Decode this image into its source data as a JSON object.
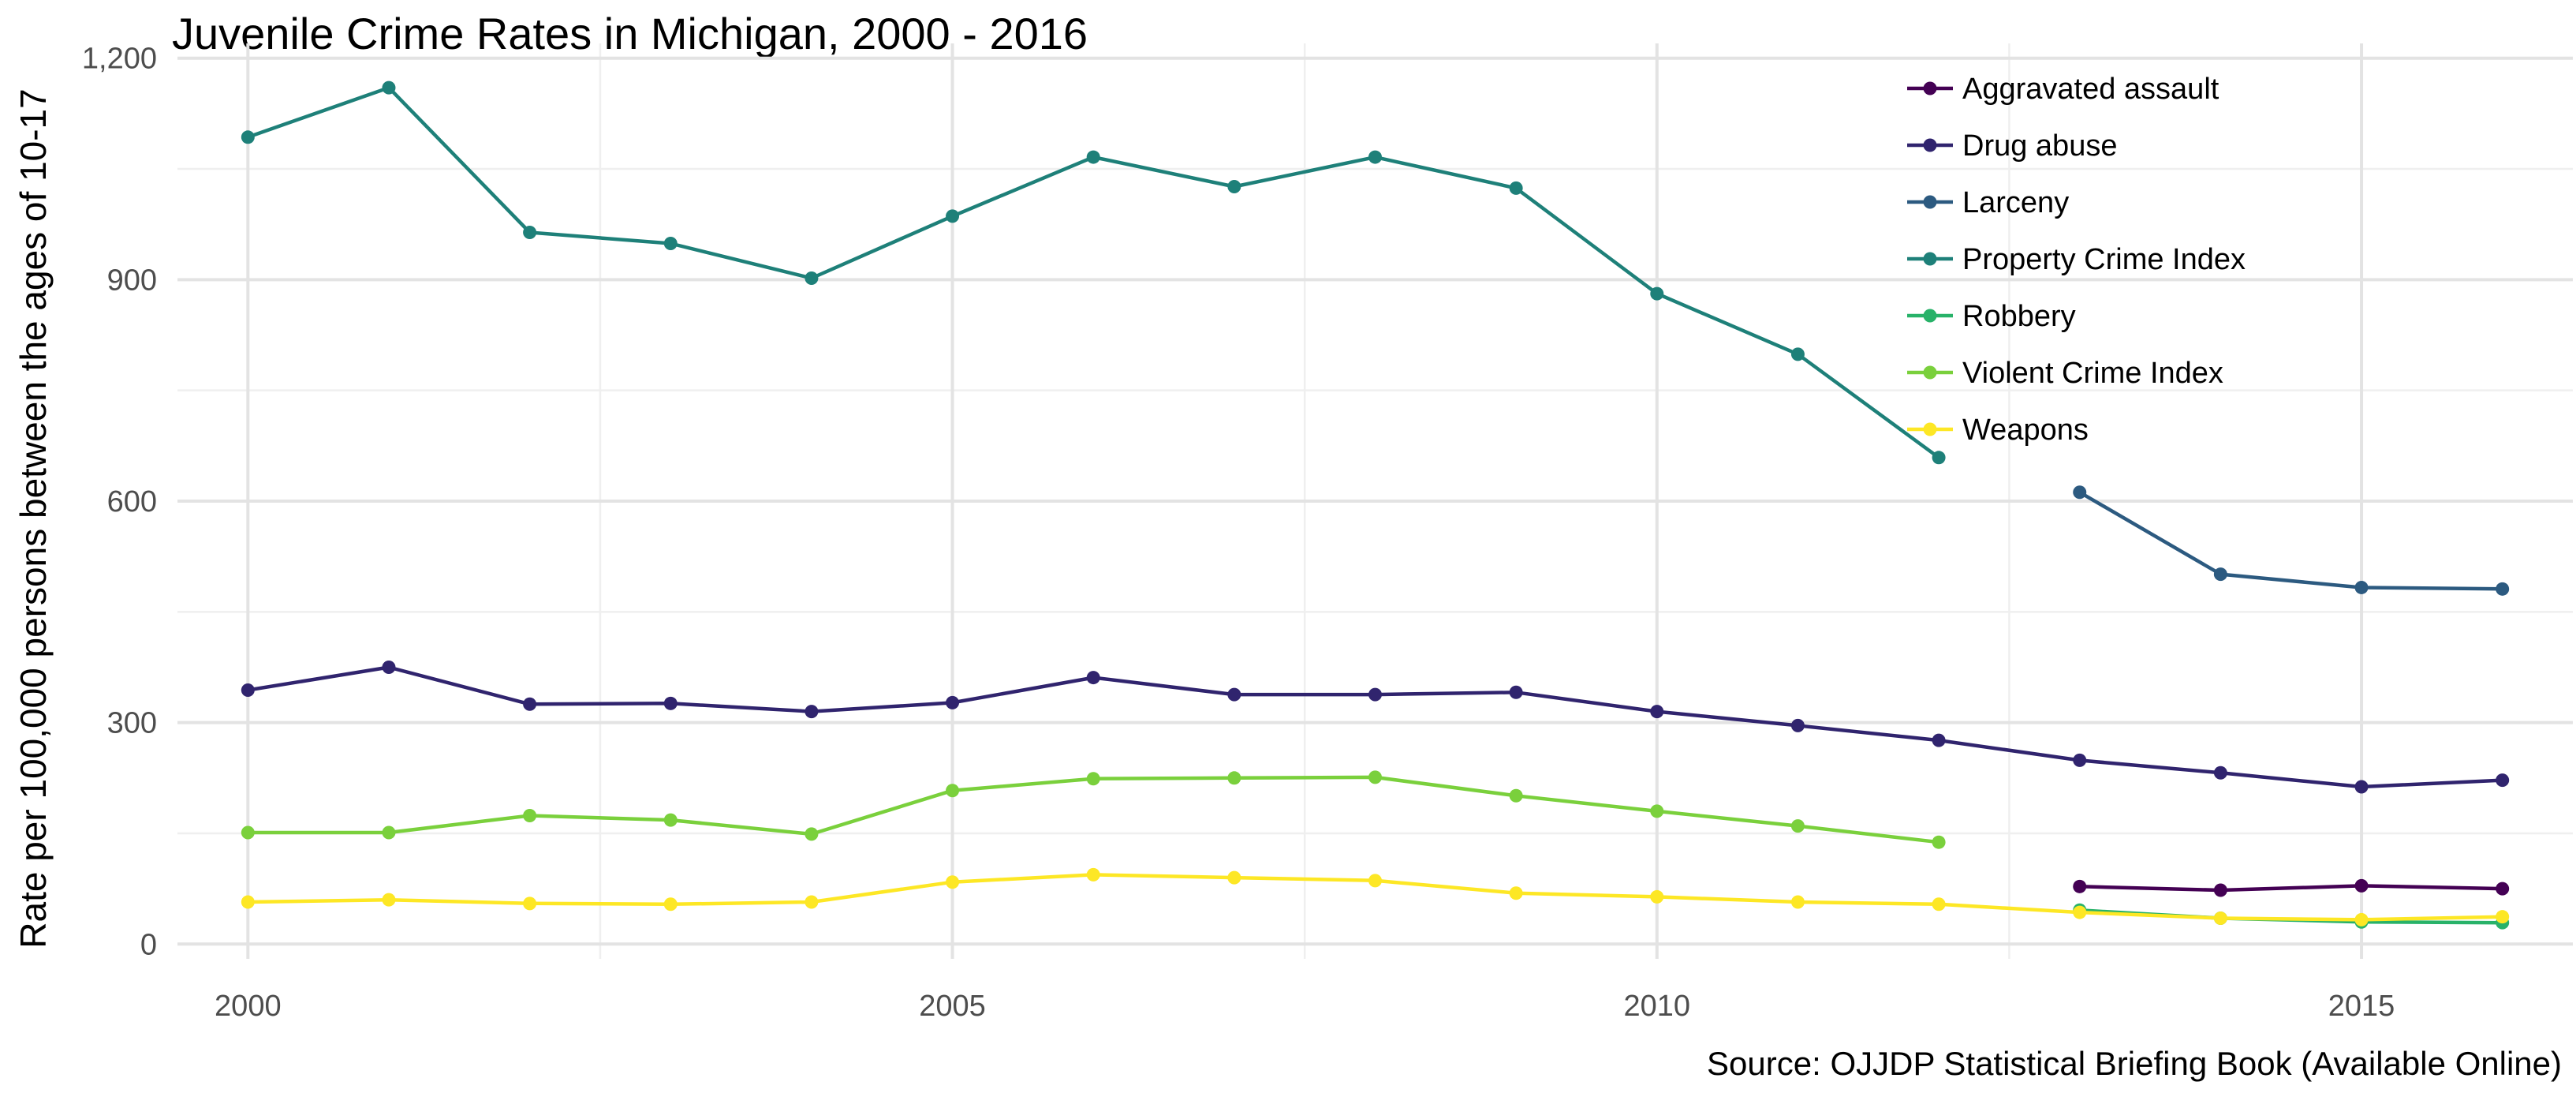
{
  "chart_data": {
    "type": "line",
    "title": "Juvenile Crime Rates in Michigan, 2000 - 2016",
    "caption": "Source: OJJDP Statistical Briefing Book (Available Online)",
    "xlabel": "",
    "ylabel": "Rate per 100,000 persons between the ages of 10-17",
    "xlim": [
      1999.5,
      2016.5
    ],
    "ylim": [
      -20,
      1220
    ],
    "x_ticks": [
      2000,
      2005,
      2010,
      2015
    ],
    "x_tick_labels": [
      "2000",
      "2005",
      "2010",
      "2015"
    ],
    "y_ticks": [
      0,
      300,
      600,
      900,
      1200
    ],
    "y_tick_labels": [
      "0",
      "300",
      "600",
      "900",
      "1,200"
    ],
    "grid": true,
    "legend_position": "top-right",
    "series": [
      {
        "name": "Aggravated assault",
        "color": "#440154",
        "x": [
          2013,
          2014,
          2015,
          2016
        ],
        "y": [
          78,
          73,
          79,
          75
        ]
      },
      {
        "name": "Drug abuse",
        "color": "#30246e",
        "x": [
          2000,
          2001,
          2002,
          2003,
          2004,
          2005,
          2006,
          2007,
          2008,
          2009,
          2010,
          2011,
          2012,
          2013,
          2014,
          2015,
          2016
        ],
        "y": [
          344,
          375,
          325,
          326,
          315,
          327,
          361,
          338,
          338,
          341,
          315,
          296,
          276,
          249,
          232,
          213,
          222
        ]
      },
      {
        "name": "Larceny",
        "color": "#2c5a80",
        "x": [
          2013,
          2014,
          2015,
          2016
        ],
        "y": [
          612,
          501,
          483,
          481
        ]
      },
      {
        "name": "Property Crime Index",
        "color": "#1e8079",
        "x": [
          2000,
          2001,
          2002,
          2003,
          2004,
          2005,
          2006,
          2007,
          2008,
          2009,
          2010,
          2011,
          2012
        ],
        "y": [
          1093,
          1160,
          964,
          949,
          902,
          986,
          1066,
          1026,
          1066,
          1024,
          881,
          799,
          659
        ]
      },
      {
        "name": "Robbery",
        "color": "#28b269",
        "x": [
          2013,
          2014,
          2015,
          2016
        ],
        "y": [
          46,
          35,
          30,
          29
        ]
      },
      {
        "name": "Violent Crime Index",
        "color": "#7ad03c",
        "x": [
          2000,
          2001,
          2002,
          2003,
          2004,
          2005,
          2006,
          2007,
          2008,
          2009,
          2010,
          2011,
          2012
        ],
        "y": [
          151,
          151,
          174,
          168,
          149,
          208,
          224,
          225,
          226,
          201,
          180,
          160,
          138
        ]
      },
      {
        "name": "Weapons",
        "color": "#fde725",
        "x": [
          2000,
          2001,
          2002,
          2003,
          2004,
          2005,
          2006,
          2007,
          2008,
          2009,
          2010,
          2011,
          2012,
          2013,
          2014,
          2015,
          2016
        ],
        "y": [
          57,
          60,
          55,
          54,
          57,
          84,
          94,
          90,
          86,
          69,
          64,
          57,
          54,
          43,
          35,
          33,
          37
        ]
      }
    ]
  }
}
